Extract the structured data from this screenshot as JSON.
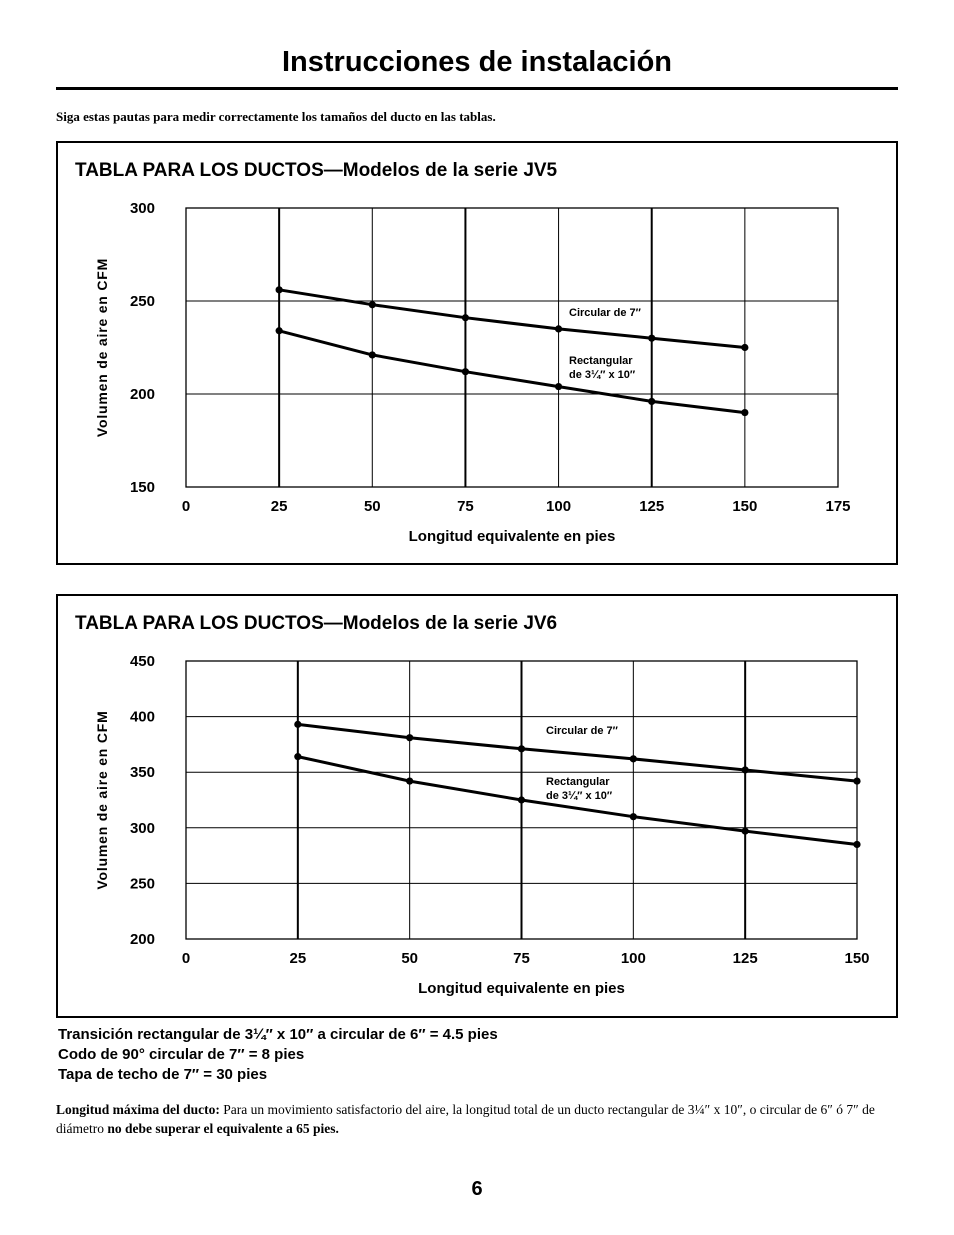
{
  "page": {
    "title": "Instrucciones de instalación",
    "intro": "Siga estas pautas para medir correctamente los tamaños del ducto en las tablas.",
    "notes": [
      "Transición rectangular de 3¼″ x 10″ a circular de 6″ = 4.5 pies",
      "Codo de 90° circular de 7″ = 8 pies",
      "Tapa de techo de 7″ = 30 pies"
    ],
    "footnote": {
      "label": "Longitud máxima del ducto:",
      "text": " Para un movimiento satisfactorio del aire, la longitud total de un ducto rectangular de 3¼″ x 10″, o circular de 6″ ó 7″ de diámetro ",
      "emphasis": "no debe superar el equivalente a 65 pies."
    },
    "page_number": "6"
  },
  "chart_data": [
    {
      "type": "line",
      "title": "TABLA PARA LOS DUCTOS—Modelos de la serie JV5",
      "xlabel": "Longitud equivalente en pies",
      "ylabel": "Volumen de aire en CFM",
      "xlim": [
        0,
        175
      ],
      "ylim": [
        150,
        300
      ],
      "xticks": [
        0,
        25,
        50,
        75,
        100,
        125,
        150,
        175
      ],
      "yticks": [
        150,
        200,
        250,
        300
      ],
      "grid": true,
      "series": [
        {
          "name": "Circular de 7″",
          "x": [
            25,
            50,
            75,
            100,
            125,
            150
          ],
          "y": [
            256,
            248,
            241,
            235,
            230,
            225
          ]
        },
        {
          "name": "Rectangular de 3¼″ x 10″",
          "x": [
            25,
            50,
            75,
            100,
            125,
            150
          ],
          "y": [
            234,
            221,
            212,
            204,
            196,
            190
          ]
        }
      ]
    },
    {
      "type": "line",
      "title": "TABLA PARA LOS DUCTOS—Modelos de la serie JV6",
      "xlabel": "Longitud equivalente en pies",
      "ylabel": "Volumen de aire en CFM",
      "xlim": [
        0,
        150
      ],
      "ylim": [
        200,
        450
      ],
      "xticks": [
        0,
        25,
        50,
        75,
        100,
        125,
        150
      ],
      "yticks": [
        200,
        250,
        300,
        350,
        400,
        450
      ],
      "grid": true,
      "series": [
        {
          "name": "Circular de 7″",
          "x": [
            25,
            50,
            75,
            100,
            125,
            150
          ],
          "y": [
            393,
            381,
            371,
            362,
            352,
            342
          ]
        },
        {
          "name": "Rectangular de 3¼″ x 10″",
          "x": [
            25,
            50,
            75,
            100,
            125,
            150
          ],
          "y": [
            364,
            342,
            325,
            310,
            297,
            285
          ]
        }
      ]
    }
  ]
}
